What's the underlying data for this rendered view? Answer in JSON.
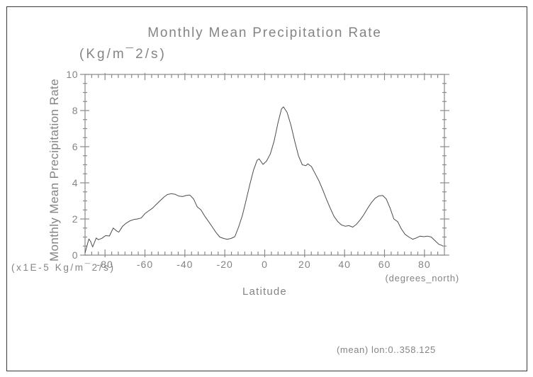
{
  "page": {
    "footer_note": "(mean) lon:0..358.125"
  },
  "colors": {
    "background": "#ffffff",
    "border": "#3a3a3a",
    "axis": "#8a8a8a",
    "curve": "#4c4c4c",
    "text": "#848484"
  },
  "chart_data": {
    "type": "line",
    "title": "Monthly Mean Precipitation Rate",
    "subtitle_units": "(Kg/m¯2/s)",
    "ylabel": "Monthly Mean Precipitation Rate",
    "xlabel": "Latitude",
    "y_scale_note": "(x1E-5 Kg/m¯2/s)",
    "x_units_note": "(degrees_north)",
    "footer_annotation": "(mean) lon:0..358.125",
    "xlim": [
      -90,
      90
    ],
    "ylim": [
      0,
      10
    ],
    "grid": false,
    "legend": null,
    "x_major_ticks": [
      -80,
      -60,
      -40,
      -20,
      0,
      20,
      40,
      60,
      80
    ],
    "x_tick_labels": [
      "-80",
      "-60",
      "-40",
      "-20",
      "0",
      "20",
      "40",
      "60",
      "80"
    ],
    "y_major_ticks": [
      0,
      2,
      4,
      6,
      8,
      10
    ],
    "y_tick_labels": [
      "0",
      "2",
      "4",
      "6",
      "8",
      "10"
    ],
    "x_minor_divisions_per_major": 6,
    "y_minor_step": 0.5,
    "series": [
      {
        "name": "monthly-mean-precipitation-rate",
        "points": [
          [
            -90.0,
            0.12
          ],
          [
            -88.1,
            0.9
          ],
          [
            -87.2,
            0.75
          ],
          [
            -86.2,
            0.45
          ],
          [
            -84.4,
            0.95
          ],
          [
            -83.4,
            0.85
          ],
          [
            -81.6,
            0.93
          ],
          [
            -79.7,
            1.08
          ],
          [
            -77.8,
            1.06
          ],
          [
            -75.9,
            1.5
          ],
          [
            -74.1,
            1.33
          ],
          [
            -73.1,
            1.27
          ],
          [
            -71.2,
            1.6
          ],
          [
            -69.4,
            1.77
          ],
          [
            -67.5,
            1.9
          ],
          [
            -65.6,
            1.97
          ],
          [
            -63.8,
            2.0
          ],
          [
            -61.9,
            2.05
          ],
          [
            -60.0,
            2.3
          ],
          [
            -58.1,
            2.45
          ],
          [
            -56.2,
            2.6
          ],
          [
            -54.4,
            2.8
          ],
          [
            -52.5,
            3.0
          ],
          [
            -50.6,
            3.2
          ],
          [
            -48.8,
            3.35
          ],
          [
            -46.9,
            3.4
          ],
          [
            -45.0,
            3.37
          ],
          [
            -43.1,
            3.27
          ],
          [
            -41.2,
            3.24
          ],
          [
            -39.4,
            3.3
          ],
          [
            -37.5,
            3.32
          ],
          [
            -35.6,
            3.1
          ],
          [
            -33.8,
            2.67
          ],
          [
            -31.9,
            2.5
          ],
          [
            -30.0,
            2.15
          ],
          [
            -28.1,
            1.85
          ],
          [
            -26.2,
            1.55
          ],
          [
            -24.4,
            1.25
          ],
          [
            -22.5,
            1.0
          ],
          [
            -20.6,
            0.92
          ],
          [
            -18.8,
            0.88
          ],
          [
            -16.9,
            0.92
          ],
          [
            -15.0,
            1.02
          ],
          [
            -13.1,
            1.55
          ],
          [
            -11.2,
            2.2
          ],
          [
            -9.4,
            3.0
          ],
          [
            -7.5,
            3.9
          ],
          [
            -5.6,
            4.7
          ],
          [
            -3.8,
            5.25
          ],
          [
            -2.8,
            5.33
          ],
          [
            -0.9,
            5.02
          ],
          [
            0.9,
            5.2
          ],
          [
            2.8,
            5.6
          ],
          [
            4.7,
            6.3
          ],
          [
            6.6,
            7.3
          ],
          [
            8.4,
            8.1
          ],
          [
            9.4,
            8.2
          ],
          [
            11.2,
            7.9
          ],
          [
            13.1,
            7.2
          ],
          [
            15.0,
            6.3
          ],
          [
            16.9,
            5.5
          ],
          [
            18.8,
            5.0
          ],
          [
            20.6,
            4.95
          ],
          [
            21.6,
            5.05
          ],
          [
            23.4,
            4.9
          ],
          [
            25.3,
            4.5
          ],
          [
            27.2,
            4.1
          ],
          [
            29.1,
            3.6
          ],
          [
            30.9,
            3.1
          ],
          [
            32.8,
            2.6
          ],
          [
            34.7,
            2.15
          ],
          [
            36.6,
            1.85
          ],
          [
            38.4,
            1.67
          ],
          [
            40.3,
            1.6
          ],
          [
            42.2,
            1.63
          ],
          [
            44.1,
            1.55
          ],
          [
            45.9,
            1.7
          ],
          [
            47.8,
            1.95
          ],
          [
            49.7,
            2.25
          ],
          [
            51.6,
            2.6
          ],
          [
            53.4,
            2.9
          ],
          [
            55.3,
            3.15
          ],
          [
            57.2,
            3.28
          ],
          [
            59.1,
            3.3
          ],
          [
            60.9,
            3.1
          ],
          [
            62.8,
            2.6
          ],
          [
            64.7,
            2.0
          ],
          [
            66.6,
            1.85
          ],
          [
            68.4,
            1.45
          ],
          [
            70.3,
            1.15
          ],
          [
            72.2,
            1.0
          ],
          [
            74.1,
            0.88
          ],
          [
            75.9,
            0.95
          ],
          [
            77.8,
            1.05
          ],
          [
            79.7,
            1.02
          ],
          [
            81.6,
            1.05
          ],
          [
            83.4,
            1.0
          ],
          [
            85.3,
            0.8
          ],
          [
            87.2,
            0.6
          ],
          [
            89.1,
            0.52
          ]
        ]
      }
    ]
  }
}
